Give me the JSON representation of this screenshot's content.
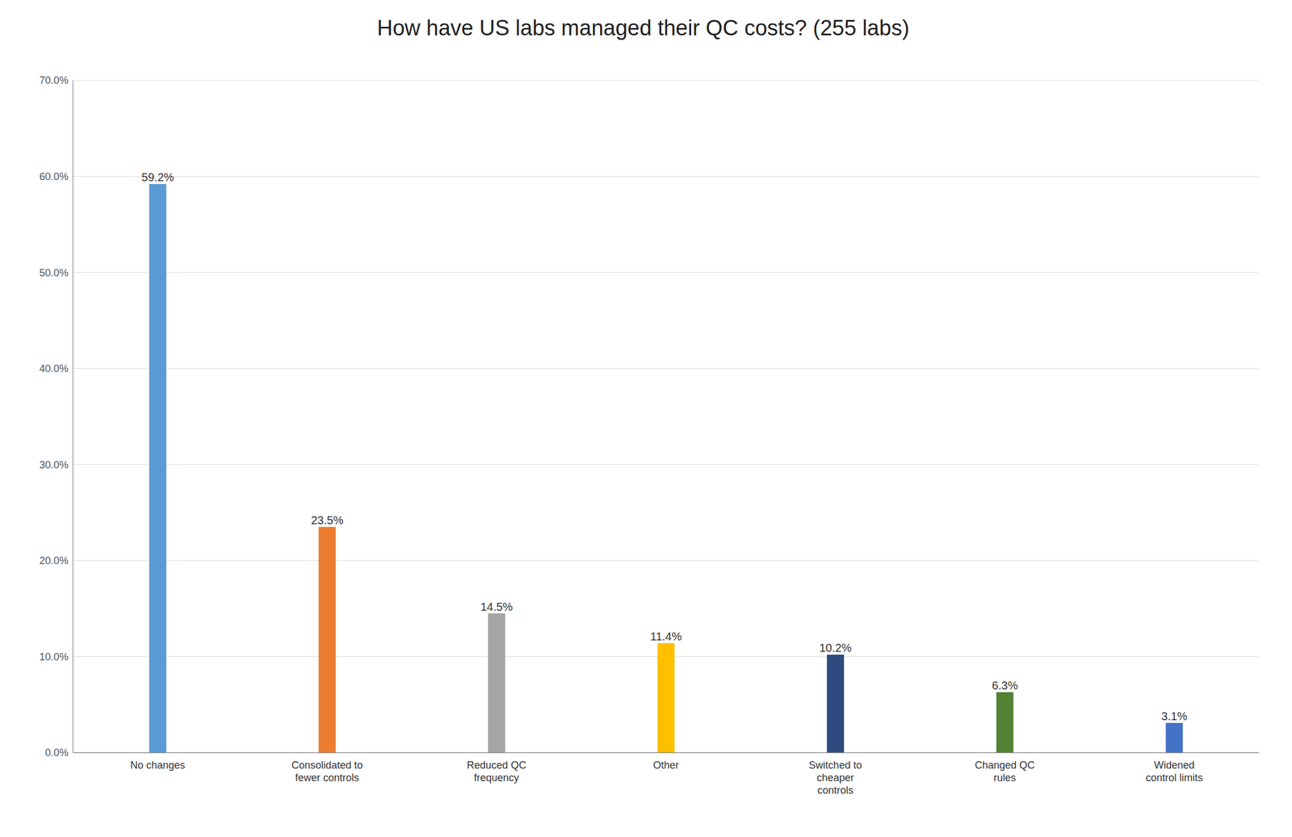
{
  "chart_data": {
    "type": "bar",
    "title": "How have US labs managed their QC costs? (255 labs)",
    "categories": [
      "No changes",
      "Consolidated to\nfewer controls",
      "Reduced QC\nfrequency",
      "Other",
      "Switched to\ncheaper\ncontrols",
      "Changed QC\nrules",
      "Widened\ncontrol limits"
    ],
    "values": [
      59.2,
      23.5,
      14.5,
      11.4,
      10.2,
      6.3,
      3.1
    ],
    "value_labels": [
      "59.2%",
      "23.5%",
      "14.5%",
      "11.4%",
      "10.2%",
      "6.3%",
      "3.1%"
    ],
    "colors": [
      "#5B9BD5",
      "#ED7D31",
      "#A5A5A5",
      "#FFC000",
      "#2E4A7E",
      "#548235",
      "#4472C4"
    ],
    "ylim": [
      0,
      70
    ],
    "yticks": [
      {
        "value": 0,
        "label": "0.0%"
      },
      {
        "value": 10,
        "label": "10.0%"
      },
      {
        "value": 20,
        "label": "20.0%"
      },
      {
        "value": 30,
        "label": "30.0%"
      },
      {
        "value": 40,
        "label": "40.0%"
      },
      {
        "value": 50,
        "label": "50.0%"
      },
      {
        "value": 60,
        "label": "60.0%"
      },
      {
        "value": 70,
        "label": "70.0%"
      }
    ],
    "grid": true,
    "data_labels": true
  }
}
